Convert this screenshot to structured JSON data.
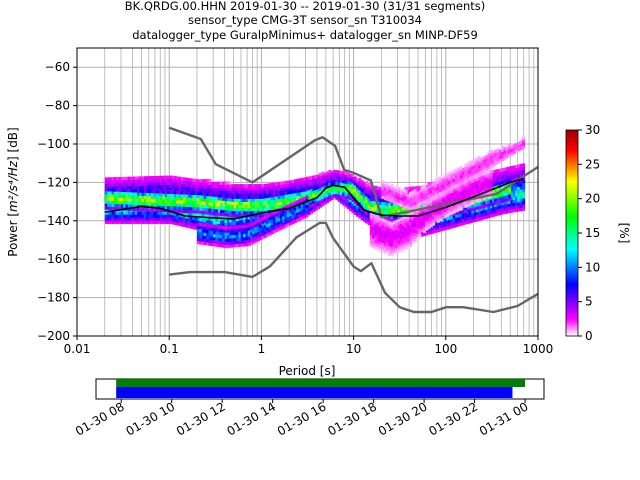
{
  "chart_data": {
    "type": "heatmap",
    "title_lines": [
      "BK.QRDG.00.HHN   2019-01-30 -- 2019-01-30  (31/31 segments)",
      "sensor_type CMG-3T sensor_sn T310034",
      "datalogger_type GuralpMinimus+ datalogger_sn MINP-DF59"
    ],
    "xlabel": "Period [s]",
    "ylabel_prefix": "Power [",
    "ylabel_unit": "m²/s⁴/Hz",
    "ylabel_suffix": "] [dB]",
    "x_scale": "log",
    "xlim": [
      0.01,
      1000
    ],
    "ylim": [
      -200,
      -50
    ],
    "x_ticks": [
      0.01,
      0.1,
      1,
      10,
      100,
      1000
    ],
    "x_tick_labels": [
      "0.01",
      "0.1",
      "1",
      "10",
      "100",
      "1000"
    ],
    "y_ticks": [
      -200,
      -180,
      -160,
      -140,
      -120,
      -100,
      -80,
      -60
    ],
    "y_tick_labels": [
      "−200",
      "−180",
      "−160",
      "−140",
      "−120",
      "−100",
      "−80",
      "−60"
    ],
    "grid": true,
    "colorbar": {
      "label": "[%]",
      "range": [
        0,
        30
      ],
      "ticks": [
        0,
        5,
        10,
        15,
        20,
        25,
        30
      ],
      "tick_labels": [
        "0",
        "5",
        "10",
        "15",
        "20",
        "25",
        "30"
      ],
      "colors": [
        "#ffffff",
        "#ff00ff",
        "#0000ff",
        "#00ffff",
        "#00ff00",
        "#ffff00",
        "#ff0000",
        "#990000"
      ]
    },
    "series": [
      {
        "name": "",
        "role": "noise-model-high",
        "color": "#666666",
        "points": [
          [
            0.1,
            -91.5
          ],
          [
            0.22,
            -97.4
          ],
          [
            0.32,
            -110.5
          ],
          [
            0.8,
            -120
          ],
          [
            3.8,
            -98
          ],
          [
            4.6,
            -96.5
          ],
          [
            6.3,
            -101
          ],
          [
            7.9,
            -113.5
          ],
          [
            10,
            -115
          ],
          [
            15.4,
            -119
          ],
          [
            20,
            -138
          ],
          [
            354.8,
            -126
          ],
          [
            1000,
            -112
          ]
        ]
      },
      {
        "name": "",
        "role": "noise-model-low",
        "color": "#666666",
        "points": [
          [
            0.1,
            -168
          ],
          [
            0.17,
            -166.7
          ],
          [
            0.4,
            -166.7
          ],
          [
            0.8,
            -169.2
          ],
          [
            1.24,
            -163.7
          ],
          [
            2.4,
            -148.6
          ],
          [
            4.3,
            -141.1
          ],
          [
            5,
            -141.1
          ],
          [
            6,
            -149
          ],
          [
            10,
            -163.8
          ],
          [
            12,
            -166.2
          ],
          [
            15.6,
            -162.1
          ],
          [
            21.9,
            -177.5
          ],
          [
            31.6,
            -185
          ],
          [
            45,
            -187.5
          ],
          [
            70,
            -187.5
          ],
          [
            101,
            -185
          ],
          [
            154.5,
            -185
          ],
          [
            328.2,
            -187.5
          ],
          [
            600,
            -184.4
          ],
          [
            1000,
            -178
          ]
        ]
      },
      {
        "name": "",
        "role": "mean-psd",
        "color": "#000000",
        "points": [
          [
            0.02,
            -135.5
          ],
          [
            0.05,
            -132.5
          ],
          [
            0.08,
            -133.5
          ],
          [
            0.15,
            -137.5
          ],
          [
            0.3,
            -138.5
          ],
          [
            0.5,
            -139
          ],
          [
            1,
            -136
          ],
          [
            2,
            -133.5
          ],
          [
            4,
            -128
          ],
          [
            5,
            -123
          ],
          [
            6,
            -121.5
          ],
          [
            8,
            -122.5
          ],
          [
            10,
            -128
          ],
          [
            13,
            -134.5
          ],
          [
            20,
            -137
          ],
          [
            30,
            -137.5
          ],
          [
            50,
            -137.5
          ],
          [
            100,
            -133
          ],
          [
            200,
            -127.5
          ],
          [
            500,
            -120
          ],
          [
            700,
            -118
          ]
        ]
      }
    ],
    "density_bands": [
      {
        "points": [
          [
            0.02,
            -128,
            6
          ],
          [
            0.1,
            -127,
            6
          ],
          [
            0.2,
            -129,
            6
          ],
          [
            0.5,
            -130,
            5
          ],
          [
            1,
            -130,
            5
          ],
          [
            2,
            -128,
            5
          ],
          [
            4,
            -125,
            5
          ],
          [
            6,
            -121,
            4
          ],
          [
            8,
            -122,
            4
          ],
          [
            10,
            -126,
            5
          ],
          [
            15,
            -132,
            6
          ],
          [
            30,
            -135,
            6
          ],
          [
            100,
            -131,
            7
          ],
          [
            300,
            -126,
            7
          ],
          [
            700,
            -122,
            7
          ]
        ],
        "level": 7
      },
      {
        "points": [
          [
            0.02,
            -133,
            5
          ],
          [
            0.1,
            -133,
            5
          ],
          [
            0.3,
            -140,
            4
          ],
          [
            1,
            -136,
            4
          ],
          [
            3,
            -131,
            4
          ],
          [
            6,
            -123,
            3
          ],
          [
            10,
            -130,
            4
          ],
          [
            20,
            -139,
            5
          ],
          [
            50,
            -140,
            5
          ],
          [
            100,
            -136,
            5
          ],
          [
            400,
            -128,
            5
          ],
          [
            700,
            -126,
            5
          ]
        ],
        "level": 13
      },
      {
        "points": [
          [
            0.02,
            -129,
            3
          ],
          [
            0.2,
            -131,
            3
          ],
          [
            0.5,
            -133,
            3
          ],
          [
            1,
            -133,
            3
          ],
          [
            3,
            -129,
            3
          ],
          [
            6,
            -124,
            2
          ],
          [
            9,
            -124,
            3
          ],
          [
            15,
            -134,
            3
          ],
          [
            40,
            -136,
            3
          ],
          [
            150,
            -131,
            3
          ],
          [
            500,
            -124,
            3
          ]
        ],
        "level": 19
      },
      {
        "points": [
          [
            0.2,
            -147,
            3
          ],
          [
            0.4,
            -149,
            3
          ],
          [
            0.7,
            -148,
            3
          ],
          [
            1.5,
            -140,
            3
          ],
          [
            3,
            -133,
            3
          ]
        ],
        "level": 10
      },
      {
        "points": [
          [
            15,
            -145,
            5
          ],
          [
            25,
            -150,
            5
          ],
          [
            40,
            -145,
            5
          ],
          [
            60,
            -138,
            4
          ],
          [
            100,
            -131,
            4
          ],
          [
            200,
            -124,
            4
          ],
          [
            300,
            -121,
            4
          ]
        ],
        "level": 3
      },
      {
        "points": [
          [
            20,
            -125,
            3
          ],
          [
            40,
            -131,
            3
          ],
          [
            70,
            -125,
            3
          ],
          [
            150,
            -117,
            3
          ],
          [
            300,
            -109,
            3
          ],
          [
            500,
            -104,
            2
          ],
          [
            700,
            -100,
            2
          ]
        ],
        "level": 2
      }
    ]
  },
  "timeline": {
    "tick_labels": [
      "01-30 08",
      "01-30 10",
      "01-30 12",
      "01-30 14",
      "01-30 16",
      "01-30 18",
      "01-30 20",
      "01-30 22",
      "01-31 00"
    ],
    "tick_hours": [
      8,
      10,
      12,
      14,
      16,
      18,
      20,
      22,
      24
    ],
    "axis_start_hour": 7.0,
    "axis_end_hour": 24.75,
    "data_start_hour": 7.8,
    "data_end_hour": 24.0,
    "used_end_hour": 23.5,
    "colors": {
      "data": "#008000",
      "used": "#0000ff"
    }
  },
  "colors": {
    "grid": "#b0b0b0",
    "model_line": "#666666",
    "mean_line": "#000000"
  }
}
